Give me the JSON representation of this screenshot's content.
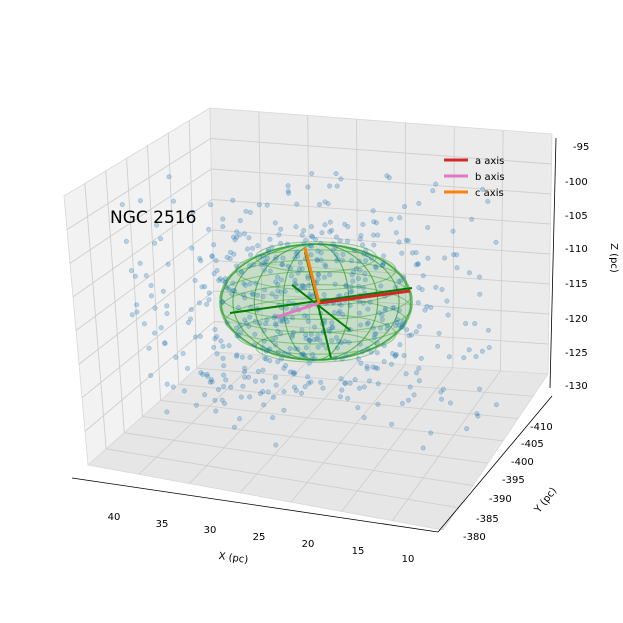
{
  "chart_data": {
    "type": "scatter",
    "title": "NGC 2516",
    "xlabel": "X (pc)",
    "ylabel": "Y (pc)",
    "zlabel": "Z (pc)",
    "x_ticks": [
      "40",
      "35",
      "30",
      "25",
      "20",
      "15",
      "10"
    ],
    "y_ticks": [
      "-380",
      "-385",
      "-390",
      "-395",
      "-400",
      "-405",
      "-410"
    ],
    "z_ticks": [
      "-95",
      "-100",
      "-105",
      "-110",
      "-115",
      "-120",
      "-125",
      "-130"
    ],
    "xlim": [
      8,
      44
    ],
    "ylim": [
      -378,
      -412
    ],
    "zlim": [
      -131,
      -94
    ],
    "grid": true,
    "legend_position": "top-right",
    "series": [
      {
        "name": "a axis",
        "color": "#d62728"
      },
      {
        "name": "b axis",
        "color": "#e377c2"
      },
      {
        "name": "c axis",
        "color": "#ff7f0e"
      }
    ],
    "scatter_color": "#1f77b4",
    "ellipsoid_color": "#2ca02c",
    "approx_center": {
      "x": 26,
      "y": -395,
      "z": -117
    },
    "approx_star_count": 700
  }
}
